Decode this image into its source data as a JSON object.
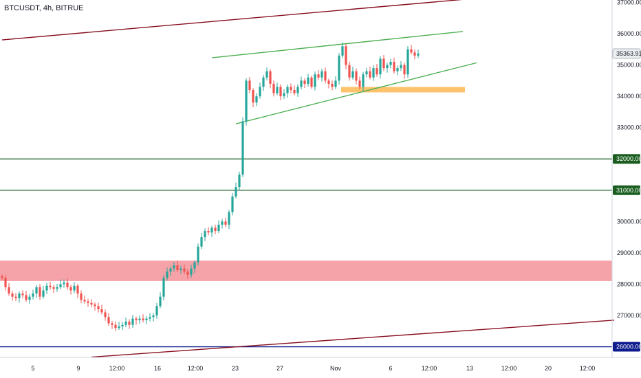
{
  "symbol_label": "BTCUSDT, 4h, BITRUE",
  "colors": {
    "up": "#26a69a",
    "down": "#ef5350",
    "channel_outer": "#880e1f",
    "channel_inner": "#4caf50",
    "support_green": "#1b5e20",
    "support_blue": "#0d1b8c",
    "zone_red": "#f5a3a8",
    "zone_orange": "#ffc36e"
  },
  "chart_data": {
    "type": "candlestick",
    "y_ticks": [
      "37000.00",
      "36000.00",
      "35000.00",
      "34000.00",
      "33000.00",
      "30000.00",
      "29000.00",
      "28000.00",
      "27000.00"
    ],
    "x_ticks": [
      "5",
      "9",
      "12:00",
      "16",
      "12:00",
      "23",
      "27",
      "Nov",
      "6",
      "12:00",
      "13",
      "12:00",
      "20",
      "12:00"
    ],
    "ylim": [
      25700,
      37100
    ],
    "last_price": "35363.91",
    "levels": [
      {
        "price": 32000,
        "label": "32000.00",
        "color": "#1b5e20"
      },
      {
        "price": 31000,
        "label": "31000.00",
        "color": "#1b5e20"
      },
      {
        "price": 26000,
        "label": "26000.00",
        "color": "#0d1b8c"
      }
    ],
    "zones": [
      {
        "from": 28100,
        "to": 28750,
        "color": "#f5a3a8"
      },
      {
        "from": 34150,
        "to": 34300,
        "color": "#ffc36e"
      }
    ],
    "trendlines": [
      {
        "name": "channel-top",
        "points": [
          [
            0,
            35800
          ],
          [
            140,
            37150
          ]
        ],
        "color": "#880e1f"
      },
      {
        "name": "channel-bottom",
        "points": [
          [
            26,
            25670
          ],
          [
            178,
            26850
          ]
        ],
        "color": "#880e1f"
      },
      {
        "name": "wedge-top",
        "points": [
          [
            61,
            35230
          ],
          [
            134,
            36070
          ]
        ],
        "color": "#4caf50"
      },
      {
        "name": "wedge-bottom",
        "points": [
          [
            68,
            33120
          ],
          [
            138,
            35070
          ]
        ],
        "color": "#4caf50"
      }
    ],
    "candle_count": 122,
    "closes": [
      28200,
      27900,
      27700,
      27600,
      27550,
      27700,
      27650,
      27500,
      27600,
      27700,
      27900,
      27600,
      27800,
      27950,
      27900,
      27850,
      27900,
      28000,
      28050,
      27900,
      27800,
      27950,
      27700,
      27500,
      27450,
      27400,
      27350,
      27300,
      27200,
      27100,
      26950,
      26750,
      26700,
      26600,
      26650,
      26700,
      26800,
      26700,
      26900,
      26850,
      26900,
      26850,
      26900,
      26950,
      27000,
      27300,
      27600,
      28200,
      28400,
      28500,
      28600,
      28450,
      28500,
      28400,
      28300,
      28500,
      28700,
      29200,
      29500,
      29700,
      29650,
      29800,
      29700,
      29900,
      30000,
      29900,
      30300,
      30800,
      31100,
      31500,
      33200,
      34500,
      34200,
      33800,
      34000,
      34300,
      34600,
      34800,
      34400,
      34100,
      34300,
      34000,
      34100,
      34300,
      34200,
      34100,
      34300,
      34500,
      34400,
      34600,
      34300,
      34700,
      34600,
      34800,
      34500,
      34400,
      34300,
      34500,
      35300,
      35600,
      35000,
      34600,
      34800,
      34500,
      34300,
      34700,
      34800,
      34600,
      34900,
      34700,
      35200,
      34900,
      35000,
      35100,
      34800,
      34900,
      35000,
      34700,
      35500,
      35400,
      35300,
      35364
    ]
  }
}
